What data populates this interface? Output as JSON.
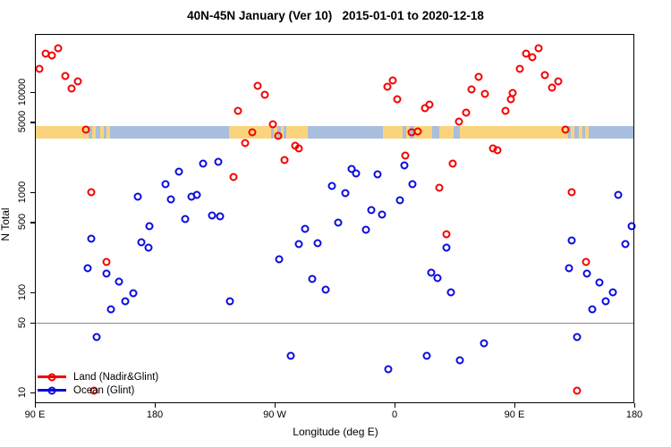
{
  "chart_data": {
    "type": "scatter",
    "title": "40N-45N January (Ver 10)   2015-01-01 to 2020-12-18",
    "xlabel": "Longitude (deg E)",
    "ylabel": "N Total",
    "xlim": [
      90,
      540
    ],
    "ylim": [
      7.8,
      37700
    ],
    "y_scale": "log",
    "grid": "off",
    "x_ticks": [
      {
        "value": 90,
        "label": "90 E"
      },
      {
        "value": 180,
        "label": "180"
      },
      {
        "value": 270,
        "label": "90 W"
      },
      {
        "value": 360,
        "label": "0"
      },
      {
        "value": 450,
        "label": "90 E"
      },
      {
        "value": 540,
        "label": "180"
      }
    ],
    "y_ticks": [
      {
        "value": 10000,
        "label": "10000"
      },
      {
        "value": 5000,
        "label": "5000"
      },
      {
        "value": 1000,
        "label": "1000"
      },
      {
        "value": 500,
        "label": "500"
      },
      {
        "value": 100,
        "label": "100"
      },
      {
        "value": 50,
        "label": "50"
      },
      {
        "value": 10,
        "label": "10"
      }
    ],
    "hline_value": 50,
    "hline_color": "#8a8a8a",
    "land_ocean_band": {
      "value_range": [
        3430,
        4580
      ],
      "land_color": "#fad47c",
      "ocean_color": "#a8bedc",
      "segments": [
        [
          90,
          130,
          "L"
        ],
        [
          130,
          133,
          "O"
        ],
        [
          133,
          135.5,
          "L"
        ],
        [
          135.5,
          139,
          "O"
        ],
        [
          139,
          141.5,
          "L"
        ],
        [
          141.5,
          144,
          "O"
        ],
        [
          144,
          146.5,
          "L"
        ],
        [
          146.5,
          236,
          "O"
        ],
        [
          236,
          267,
          "L"
        ],
        [
          267,
          269.5,
          "O"
        ],
        [
          269.5,
          272,
          "L"
        ],
        [
          272,
          274.5,
          "O"
        ],
        [
          274.5,
          277,
          "L"
        ],
        [
          277,
          279,
          "O"
        ],
        [
          279,
          295,
          "L"
        ],
        [
          295,
          351,
          "O"
        ],
        [
          351,
          366,
          "L"
        ],
        [
          366,
          368.5,
          "O"
        ],
        [
          368.5,
          371.5,
          "L"
        ],
        [
          371.5,
          374.5,
          "O"
        ],
        [
          374.5,
          388,
          "L"
        ],
        [
          388,
          393.5,
          "O"
        ],
        [
          393.5,
          404,
          "L"
        ],
        [
          404,
          409,
          "O"
        ],
        [
          409,
          490,
          "L"
        ],
        [
          490,
          492.5,
          "O"
        ],
        [
          492.5,
          495,
          "L"
        ],
        [
          495,
          498.5,
          "O"
        ],
        [
          498.5,
          501,
          "L"
        ],
        [
          501,
          503,
          "O"
        ],
        [
          503,
          506,
          "L"
        ],
        [
          506,
          540,
          "O"
        ]
      ]
    },
    "legend": {
      "position": "bottom-left"
    },
    "series": [
      {
        "name": "Land (Nadir&Glint)",
        "color": "#f40000",
        "points": [
          [
            98.1,
            24200
          ],
          [
            102.8,
            23000
          ],
          [
            107.5,
            27400
          ],
          [
            93.4,
            17000
          ],
          [
            112.8,
            14400
          ],
          [
            122.2,
            12700
          ],
          [
            117.5,
            10700
          ],
          [
            128.3,
            4200
          ],
          [
            132.3,
            1000
          ],
          [
            143.5,
            200
          ],
          [
            134.3,
            10.5
          ],
          [
            239.1,
            1400
          ],
          [
            242.3,
            6400
          ],
          [
            247.8,
            3100
          ],
          [
            253.0,
            3900
          ],
          [
            257.4,
            11400
          ],
          [
            262.6,
            9300
          ],
          [
            268.6,
            4700
          ],
          [
            272.5,
            3600
          ],
          [
            277.6,
            2100
          ],
          [
            285.4,
            2900
          ],
          [
            288.1,
            2700
          ],
          [
            354.4,
            11200
          ],
          [
            358.9,
            12900
          ],
          [
            362.2,
            8500
          ],
          [
            367.9,
            2300
          ],
          [
            372.7,
            3900
          ],
          [
            377.7,
            4000
          ],
          [
            382.8,
            6800
          ],
          [
            386.2,
            7400
          ],
          [
            393.8,
            1100
          ],
          [
            398.9,
            380
          ],
          [
            403.8,
            1900
          ],
          [
            408.4,
            5000
          ],
          [
            414.0,
            6200
          ],
          [
            418.0,
            10500
          ],
          [
            423.3,
            14200
          ],
          [
            428.0,
            9500
          ],
          [
            433.7,
            2700
          ],
          [
            437.4,
            2600
          ],
          [
            443.1,
            6400
          ],
          [
            447.1,
            8500
          ],
          [
            448.6,
            9700
          ],
          [
            454.2,
            16800
          ],
          [
            458.7,
            23900
          ],
          [
            463.6,
            22300
          ],
          [
            468.3,
            26900
          ],
          [
            472.8,
            14700
          ],
          [
            478.4,
            10900
          ],
          [
            482.9,
            12600
          ],
          [
            488.3,
            4200
          ],
          [
            492.8,
            1000
          ],
          [
            503.9,
            200
          ],
          [
            497.2,
            10.5
          ]
        ]
      },
      {
        "name": "Ocean (Glint)",
        "color": "#0b0bdf",
        "points": [
          [
            129.6,
            175
          ],
          [
            132.1,
            340
          ],
          [
            136.3,
            36
          ],
          [
            143.5,
            153
          ],
          [
            147.3,
            67
          ],
          [
            153.1,
            127
          ],
          [
            157.6,
            81
          ],
          [
            163.7,
            98
          ],
          [
            167.4,
            900
          ],
          [
            169.8,
            314
          ],
          [
            175.0,
            280
          ],
          [
            175.9,
            460
          ],
          [
            188.3,
            1190
          ],
          [
            192.1,
            840
          ],
          [
            198.3,
            1600
          ],
          [
            202.8,
            540
          ],
          [
            207.3,
            900
          ],
          [
            211.4,
            930
          ],
          [
            216.4,
            1920
          ],
          [
            223.0,
            580
          ],
          [
            227.5,
            1980
          ],
          [
            229.3,
            570
          ],
          [
            236.4,
            81
          ],
          [
            273.6,
            211
          ],
          [
            282.1,
            23
          ],
          [
            288.1,
            303
          ],
          [
            292.8,
            430
          ],
          [
            298.4,
            136
          ],
          [
            302.2,
            308
          ],
          [
            308.5,
            107
          ],
          [
            313.0,
            1150
          ],
          [
            317.9,
            490
          ],
          [
            323.1,
            970
          ],
          [
            327.5,
            1700
          ],
          [
            331.3,
            1540
          ],
          [
            338.5,
            420
          ],
          [
            342.5,
            660
          ],
          [
            347.4,
            1510
          ],
          [
            350.4,
            590
          ],
          [
            355.4,
            17
          ],
          [
            363.8,
            830
          ],
          [
            367.2,
            1850
          ],
          [
            373.4,
            1190
          ],
          [
            383.9,
            23
          ],
          [
            387.5,
            157
          ],
          [
            392.2,
            139
          ],
          [
            398.9,
            280
          ],
          [
            402.1,
            100
          ],
          [
            409.0,
            21
          ],
          [
            427.4,
            31
          ],
          [
            490.8,
            175
          ],
          [
            493.0,
            330
          ],
          [
            496.8,
            36
          ],
          [
            504.6,
            153
          ],
          [
            508.4,
            67
          ],
          [
            513.6,
            126
          ],
          [
            518.7,
            81
          ],
          [
            524.1,
            99
          ],
          [
            528.1,
            930
          ],
          [
            533.3,
            300
          ],
          [
            538.2,
            460
          ]
        ]
      }
    ]
  }
}
